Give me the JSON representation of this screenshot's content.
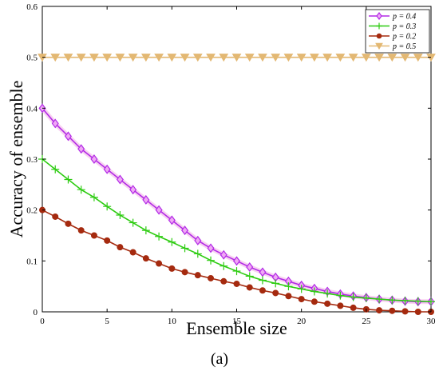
{
  "chart_data": {
    "type": "line",
    "xlabel": "Ensemble size",
    "ylabel": "Accuracy of ensemble",
    "xlim": [
      0,
      30
    ],
    "ylim": [
      0,
      0.6
    ],
    "xticks": [
      "0",
      "5",
      "10",
      "15",
      "20",
      "25",
      "30"
    ],
    "yticks": [
      "0",
      "0.1",
      "0.2",
      "0.3",
      "0.4",
      "0.5",
      "0.6"
    ],
    "grid": true,
    "legend_position": "top-right",
    "x": [
      0,
      1,
      2,
      3,
      4,
      5,
      6,
      7,
      8,
      9,
      10,
      11,
      12,
      13,
      14,
      15,
      16,
      17,
      18,
      19,
      20,
      21,
      22,
      23,
      24,
      25,
      26,
      27,
      28,
      29,
      30
    ],
    "series": [
      {
        "name": "p = 0.4",
        "color": "#b22be6",
        "marker": "diamond",
        "values": [
          0.4,
          0.37,
          0.345,
          0.32,
          0.3,
          0.28,
          0.26,
          0.24,
          0.22,
          0.2,
          0.18,
          0.16,
          0.14,
          0.125,
          0.112,
          0.1,
          0.088,
          0.078,
          0.068,
          0.06,
          0.052,
          0.046,
          0.04,
          0.035,
          0.031,
          0.028,
          0.025,
          0.023,
          0.021,
          0.02,
          0.02
        ]
      },
      {
        "name": "p = 0.3",
        "color": "#2ecc12",
        "marker": "plus",
        "values": [
          0.3,
          0.28,
          0.26,
          0.24,
          0.225,
          0.207,
          0.19,
          0.175,
          0.16,
          0.148,
          0.137,
          0.125,
          0.114,
          0.101,
          0.09,
          0.08,
          0.07,
          0.062,
          0.056,
          0.05,
          0.045,
          0.04,
          0.036,
          0.032,
          0.029,
          0.027,
          0.025,
          0.023,
          0.022,
          0.021,
          0.02
        ]
      },
      {
        "name": "p = 0.2",
        "color": "#a52a0f",
        "marker": "circle",
        "values": [
          0.2,
          0.187,
          0.173,
          0.16,
          0.15,
          0.14,
          0.127,
          0.117,
          0.105,
          0.095,
          0.085,
          0.078,
          0.072,
          0.066,
          0.06,
          0.055,
          0.048,
          0.042,
          0.037,
          0.031,
          0.025,
          0.02,
          0.016,
          0.012,
          0.008,
          0.005,
          0.003,
          0.002,
          0.001,
          0.0,
          0.0
        ]
      },
      {
        "name": "p = 0.5",
        "color": "#e3b873",
        "marker": "triangle-down",
        "values": [
          0.5,
          0.5,
          0.5,
          0.5,
          0.5,
          0.5,
          0.5,
          0.5,
          0.5,
          0.5,
          0.5,
          0.5,
          0.5,
          0.5,
          0.5,
          0.5,
          0.5,
          0.5,
          0.5,
          0.5,
          0.5,
          0.5,
          0.5,
          0.5,
          0.5,
          0.5,
          0.5,
          0.5,
          0.5,
          0.5,
          0.5
        ]
      }
    ]
  },
  "caption": "(a)"
}
